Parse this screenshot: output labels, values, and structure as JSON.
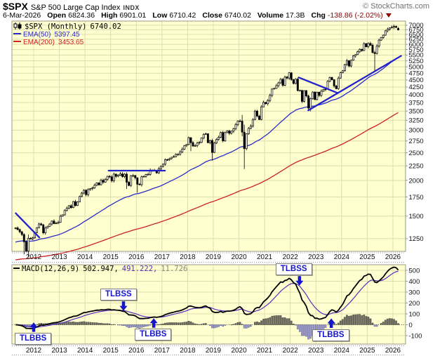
{
  "header": {
    "symbol": "$SPX",
    "name": "S&P 500 Large Cap Index",
    "exchange": "INDX",
    "credit": "© StockCharts.com",
    "date": "6-Mar-2026",
    "fields": [
      {
        "label": "Open",
        "value": "6824.36",
        "negative": false
      },
      {
        "label": "High",
        "value": "6901.01",
        "negative": false
      },
      {
        "label": "Low",
        "value": "6710.42",
        "negative": false
      },
      {
        "label": "Close",
        "value": "6740.02",
        "negative": false
      },
      {
        "label": "Volume",
        "value": "17.3B",
        "negative": false
      },
      {
        "label": "Chg",
        "value": "-138.86 (-2.02%)",
        "negative": true
      }
    ]
  },
  "price_panel": {
    "legend": {
      "series": "$SPX (Monthly)",
      "value": "6740.02",
      "ema50_label": "EMA(50)",
      "ema50_value": "5397.45",
      "ema200_label": "EMA(200)",
      "ema200_value": "3453.65"
    }
  },
  "macd_panel": {
    "legend": {
      "name": "MACD(12,26,9)",
      "macd_value": "502.947,",
      "signal_value": "491.222,",
      "hist_value": "11.726"
    }
  },
  "chart_data": {
    "type": "candlestick",
    "interval": "monthly",
    "scale": "log",
    "start": "2011-04",
    "end": "2026-03",
    "title": "$SPX (Monthly) 6740.02",
    "price_ticks": [
      7000,
      6750,
      6500,
      6250,
      6000,
      5750,
      5500,
      5250,
      5000,
      4750,
      4500,
      4250,
      4000,
      3750,
      3500,
      3250,
      3000,
      2750,
      2500,
      2250,
      2000,
      1750,
      1500,
      1250
    ],
    "years": [
      2012,
      2013,
      2014,
      2015,
      2016,
      2017,
      2018,
      2019,
      2020,
      2021,
      2022,
      2023,
      2024,
      2025,
      2026
    ],
    "closes": [
      1364,
      1345,
      1321,
      1292,
      1219,
      1131,
      1253,
      1247,
      1258,
      1312,
      1366,
      1408,
      1398,
      1310,
      1362,
      1379,
      1407,
      1441,
      1412,
      1416,
      1426,
      1498,
      1515,
      1569,
      1598,
      1631,
      1606,
      1686,
      1633,
      1682,
      1757,
      1806,
      1848,
      1783,
      1859,
      1872,
      1884,
      1924,
      1960,
      1931,
      2003,
      1972,
      2018,
      2068,
      2059,
      1995,
      2105,
      2068,
      2086,
      2107,
      2063,
      2104,
      1972,
      1920,
      2079,
      2080,
      2044,
      1940,
      1932,
      2060,
      2065,
      2097,
      2099,
      2174,
      2171,
      2168,
      2126,
      2199,
      2239,
      2279,
      2364,
      2363,
      2384,
      2412,
      2423,
      2470,
      2472,
      2519,
      2575,
      2648,
      2674,
      2824,
      2714,
      2641,
      2648,
      2705,
      2718,
      2816,
      2902,
      2914,
      2712,
      2760,
      2507,
      2704,
      2784,
      2834,
      2946,
      2752,
      2942,
      2980,
      2926,
      2977,
      3038,
      3141,
      3231,
      3226,
      2954,
      2585,
      2912,
      3044,
      3100,
      3271,
      3500,
      3363,
      3270,
      3622,
      3756,
      3714,
      3811,
      3973,
      4181,
      4204,
      4298,
      4395,
      4523,
      4308,
      4605,
      4567,
      4766,
      4516,
      4374,
      4530,
      4132,
      4132,
      3785,
      4130,
      3955,
      3586,
      3872,
      4080,
      3840,
      4077,
      3970,
      4109,
      4169,
      4180,
      4450,
      4589,
      4508,
      4288,
      4194,
      4568,
      4770,
      4846,
      5096,
      5254,
      5036,
      5278,
      5460,
      5522,
      5648,
      5762,
      5705,
      6032,
      5882,
      6041,
      5955,
      5612,
      5569,
      5912,
      6205,
      6339,
      6460,
      6688,
      6780,
      6850,
      6890,
      6931,
      6879,
      6740
    ],
    "extremes": {
      "4": [
        1307,
        1101
      ],
      "6": [
        1293,
        1075
      ],
      "52": [
        2134,
        1867
      ],
      "57": [
        2038,
        1812
      ],
      "82": [
        2835,
        2533
      ],
      "92": [
        2800,
        2347
      ],
      "106": [
        3393,
        2856
      ],
      "107": [
        3137,
        2192
      ],
      "138": [
        3907,
        3492
      ],
      "168": [
        5697,
        4835
      ],
      "179": [
        6901,
        6710
      ]
    },
    "open_overrides": {
      "179": 6824.36
    },
    "overlays": [
      {
        "name": "EMA(50)",
        "period": 50,
        "seed": 1210,
        "last": 5397.45
      },
      {
        "name": "EMA(200)",
        "period": 200,
        "seed": 1050,
        "last": 3453.65
      }
    ],
    "trendlines": [
      {
        "x1": 2011.3,
        "v1": 1535,
        "x2": 2012.22,
        "v2": 1262
      },
      {
        "x1": 2014.92,
        "v1": 2165,
        "x2": 2017.12,
        "v2": 2165
      },
      {
        "x1": 2022.33,
        "v1": 4590,
        "x2": 2023.85,
        "v2": 4050
      },
      {
        "x1": 2022.7,
        "v1": 3520,
        "x2": 2026.32,
        "v2": 5465
      }
    ],
    "macd": {
      "fast": 12,
      "slow": 26,
      "signal": 9,
      "last_macd": 502.947,
      "last_signal": 491.222,
      "last_hist": 11.726,
      "ticks": [
        500,
        400,
        300,
        200,
        100,
        0,
        -100
      ]
    },
    "signals": [
      {
        "label": "TLBBS",
        "dir": "up",
        "year": 2012.0,
        "tip": 22,
        "dx": -1
      },
      {
        "label": "TLBSS",
        "dir": "down",
        "year": 2015.5,
        "tip": 128,
        "dx": -7
      },
      {
        "label": "TLBBS",
        "dir": "up",
        "year": 2016.68,
        "tip": 60,
        "dx": -1
      },
      {
        "label": "TLBSS",
        "dir": "down",
        "year": 2022.36,
        "tip": 360,
        "dx": -8
      },
      {
        "label": "TLBBS",
        "dir": "up",
        "year": 2023.6,
        "tip": 58,
        "dx": -1
      }
    ]
  },
  "colors": {
    "plot_bg": "#ffffcf",
    "grid": "#dcdcb0",
    "border": "#9a9a8a",
    "candle": "#000000",
    "ema50": "#2b2bc8",
    "ema200": "#cc2222",
    "trendline": "#2222cc",
    "macd_line": "#000000",
    "macd_signal": "#5b2dbb",
    "hist_pos": "#6e6e62",
    "hist_pos_stroke": "#4a4a44",
    "hist_neg": "#a0a0d8",
    "hist_neg_stroke": "#5c5c8e",
    "zero_line": "#555533",
    "signal_blue": "#1515cc",
    "neg_red": "#8b0000",
    "axis_text": "#111111"
  }
}
